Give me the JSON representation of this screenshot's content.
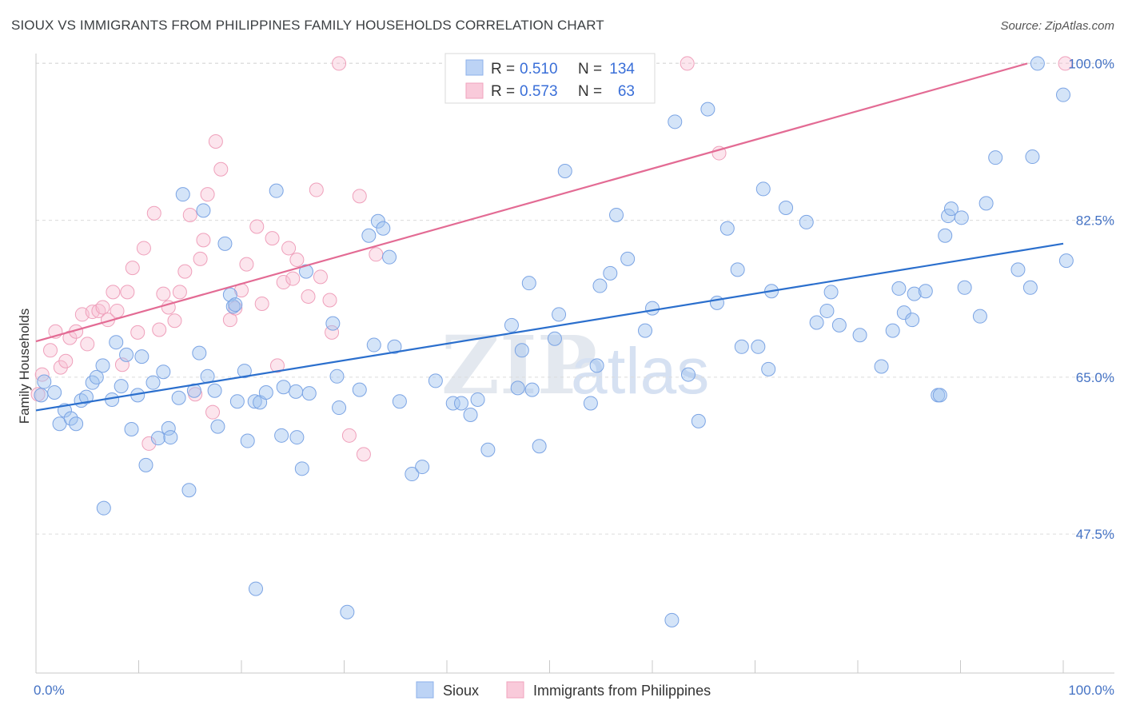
{
  "header": {
    "title": "SIOUX VS IMMIGRANTS FROM PHILIPPINES FAMILY HOUSEHOLDS CORRELATION CHART",
    "source": "Source: ZipAtlas.com"
  },
  "watermark": {
    "zip": "ZIP",
    "atlas": "atlas"
  },
  "legend_top": {
    "rows": [
      {
        "r_label": "R =",
        "r_value": "0.510",
        "n_label": "N =",
        "n_value": "134"
      },
      {
        "r_label": "R =",
        "r_value": "0.573",
        "n_label": "N =",
        "n_value": "63"
      }
    ]
  },
  "legend_bottom": {
    "items": [
      {
        "label": "Sioux"
      },
      {
        "label": "Immigrants from Philippines"
      }
    ]
  },
  "chart_data": {
    "type": "scatter",
    "title": "SIOUX VS IMMIGRANTS FROM PHILIPPINES FAMILY HOUSEHOLDS CORRELATION CHART",
    "xlabel": "",
    "ylabel": "Family Households",
    "xlim": [
      0,
      100
    ],
    "ylim": [
      32,
      102
    ],
    "x_tick_labels": [
      "0.0%",
      "100.0%"
    ],
    "y_ticks": [
      47.5,
      65.0,
      82.5,
      100.0
    ],
    "y_tick_labels": [
      "47.5%",
      "65.0%",
      "82.5%",
      "100.0%"
    ],
    "grid": "dashed horizontal",
    "colors": {
      "Sioux": "#6e9ee8",
      "Immigrants from Philippines": "#f09ab6",
      "sioux_line": "#2b6fcd",
      "phil_line": "#e36b94"
    },
    "series": [
      {
        "name": "Sioux",
        "trend": {
          "x": [
            0,
            100
          ],
          "y": [
            61.3,
            79.9
          ]
        },
        "points": [
          [
            0.5,
            63
          ],
          [
            0.8,
            64.5
          ],
          [
            1.8,
            63.3
          ],
          [
            2.3,
            59.8
          ],
          [
            2.8,
            61.3
          ],
          [
            3.4,
            60.4
          ],
          [
            3.9,
            59.8
          ],
          [
            4.4,
            62.4
          ],
          [
            4.9,
            62.8
          ],
          [
            5.5,
            64.4
          ],
          [
            5.9,
            65
          ],
          [
            6.5,
            66.3
          ],
          [
            6.6,
            50.4
          ],
          [
            7.4,
            62.5
          ],
          [
            7.8,
            68.9
          ],
          [
            8.3,
            64
          ],
          [
            8.8,
            67.5
          ],
          [
            9.3,
            59.2
          ],
          [
            9.9,
            63
          ],
          [
            10.3,
            67.3
          ],
          [
            10.7,
            55.2
          ],
          [
            11.4,
            64.4
          ],
          [
            11.9,
            58.2
          ],
          [
            12.4,
            65.6
          ],
          [
            12.9,
            59.3
          ],
          [
            13.1,
            58.3
          ],
          [
            13.9,
            62.7
          ],
          [
            14.3,
            85.4
          ],
          [
            14.9,
            52.4
          ],
          [
            15.4,
            63.5
          ],
          [
            15.9,
            67.7
          ],
          [
            16.3,
            83.6
          ],
          [
            16.7,
            65.1
          ],
          [
            17.4,
            63.5
          ],
          [
            17.7,
            59.5
          ],
          [
            18.4,
            79.9
          ],
          [
            18.9,
            74.2
          ],
          [
            19.2,
            72.9
          ],
          [
            19.4,
            73.1
          ],
          [
            19.6,
            62.3
          ],
          [
            20.3,
            65.7
          ],
          [
            20.6,
            57.9
          ],
          [
            21.3,
            62.3
          ],
          [
            21.4,
            41.4
          ],
          [
            21.8,
            62.2
          ],
          [
            22.4,
            63.3
          ],
          [
            23.4,
            85.8
          ],
          [
            23.9,
            58.5
          ],
          [
            24.1,
            63.9
          ],
          [
            25.4,
            58.3
          ],
          [
            25.3,
            63.4
          ],
          [
            25.9,
            54.8
          ],
          [
            26.3,
            76.8
          ],
          [
            26.6,
            63.2
          ],
          [
            28.9,
            71
          ],
          [
            29.3,
            65.1
          ],
          [
            29.5,
            61.6
          ],
          [
            30.3,
            38.8
          ],
          [
            31.5,
            63.6
          ],
          [
            32.4,
            80.8
          ],
          [
            32.9,
            68.6
          ],
          [
            33.3,
            82.4
          ],
          [
            33.8,
            81.6
          ],
          [
            34.4,
            78.4
          ],
          [
            34.9,
            68.4
          ],
          [
            35.4,
            62.3
          ],
          [
            36.6,
            54.2
          ],
          [
            37.6,
            55
          ],
          [
            38.9,
            64.6
          ],
          [
            40.6,
            62.1
          ],
          [
            41.4,
            62.1
          ],
          [
            42.3,
            60.8
          ],
          [
            43,
            62.5
          ],
          [
            44,
            56.9
          ],
          [
            46.3,
            70.8
          ],
          [
            46.9,
            63.8
          ],
          [
            47.3,
            68
          ],
          [
            48,
            75.5
          ],
          [
            48.3,
            63.6
          ],
          [
            49,
            57.3
          ],
          [
            50.5,
            69.3
          ],
          [
            50.9,
            72
          ],
          [
            51.5,
            88
          ],
          [
            54,
            62.1
          ],
          [
            54.6,
            66.3
          ],
          [
            54.9,
            75.2
          ],
          [
            55.9,
            76.6
          ],
          [
            56.5,
            83.1
          ],
          [
            57.6,
            78.2
          ],
          [
            59.3,
            70.2
          ],
          [
            60,
            72.7
          ],
          [
            61.9,
            37.9
          ],
          [
            62.2,
            93.5
          ],
          [
            63.5,
            65.3
          ],
          [
            64.5,
            60.1
          ],
          [
            65.4,
            94.9
          ],
          [
            66.3,
            73.3
          ],
          [
            67.3,
            81.6
          ],
          [
            68.3,
            77
          ],
          [
            68.7,
            68.4
          ],
          [
            70.3,
            68.4
          ],
          [
            70.8,
            86
          ],
          [
            71.3,
            65.9
          ],
          [
            71.6,
            74.6
          ],
          [
            73,
            83.9
          ],
          [
            75,
            82.3
          ],
          [
            76,
            71.1
          ],
          [
            77,
            72.4
          ],
          [
            77.4,
            74.5
          ],
          [
            78.2,
            70.8
          ],
          [
            80.2,
            69.7
          ],
          [
            82.3,
            66.2
          ],
          [
            83.4,
            70.2
          ],
          [
            84,
            74.9
          ],
          [
            84.5,
            72.2
          ],
          [
            85.3,
            71.4
          ],
          [
            85.5,
            74.3
          ],
          [
            86.6,
            74.6
          ],
          [
            87.8,
            63
          ],
          [
            88,
            63
          ],
          [
            88.5,
            80.8
          ],
          [
            88.8,
            83
          ],
          [
            89.1,
            83.8
          ],
          [
            90.1,
            82.8
          ],
          [
            90.4,
            75
          ],
          [
            91.9,
            71.8
          ],
          [
            92.5,
            84.4
          ],
          [
            93.4,
            89.5
          ],
          [
            95.6,
            77
          ],
          [
            96.8,
            75
          ],
          [
            97,
            89.6
          ],
          [
            97.5,
            100
          ],
          [
            100,
            96.5
          ],
          [
            100.3,
            78
          ]
        ]
      },
      {
        "name": "Immigrants from Philippines",
        "trend": {
          "x": [
            0,
            96.5
          ],
          "y": [
            69,
            100
          ]
        },
        "points": [
          [
            0.2,
            63.1
          ],
          [
            0.6,
            65.3
          ],
          [
            1.4,
            68
          ],
          [
            1.9,
            70.1
          ],
          [
            2.4,
            66.1
          ],
          [
            2.9,
            66.8
          ],
          [
            3.3,
            69.4
          ],
          [
            3.9,
            70.1
          ],
          [
            4.5,
            72
          ],
          [
            5,
            68.7
          ],
          [
            5.5,
            72.3
          ],
          [
            6.1,
            72.4
          ],
          [
            6.5,
            72.8
          ],
          [
            7,
            71.4
          ],
          [
            7.5,
            74.5
          ],
          [
            7.9,
            72.4
          ],
          [
            8.4,
            66.4
          ],
          [
            8.9,
            74.5
          ],
          [
            9.4,
            77.2
          ],
          [
            9.9,
            70
          ],
          [
            10.5,
            79.4
          ],
          [
            11,
            57.6
          ],
          [
            11.5,
            83.3
          ],
          [
            12,
            70.3
          ],
          [
            12.4,
            74.3
          ],
          [
            12.9,
            72.8
          ],
          [
            13.5,
            71.3
          ],
          [
            14,
            74.5
          ],
          [
            14.5,
            76.8
          ],
          [
            15,
            83.1
          ],
          [
            15.5,
            63.1
          ],
          [
            16,
            78.2
          ],
          [
            16.3,
            80.3
          ],
          [
            16.7,
            85.4
          ],
          [
            17.2,
            61.1
          ],
          [
            17.5,
            91.3
          ],
          [
            18,
            88.2
          ],
          [
            18.9,
            71.4
          ],
          [
            19.4,
            72.7
          ],
          [
            20,
            74.7
          ],
          [
            20.5,
            77.6
          ],
          [
            21.5,
            81.8
          ],
          [
            22,
            73.2
          ],
          [
            23,
            80.5
          ],
          [
            23.5,
            66.3
          ],
          [
            24.1,
            75.6
          ],
          [
            24.6,
            79.4
          ],
          [
            25,
            76
          ],
          [
            25.4,
            78.1
          ],
          [
            26.5,
            74
          ],
          [
            27.3,
            85.9
          ],
          [
            27.7,
            76.2
          ],
          [
            28.6,
            73.6
          ],
          [
            28.8,
            70
          ],
          [
            29.5,
            100
          ],
          [
            30.5,
            58.5
          ],
          [
            31.5,
            85.2
          ],
          [
            31.9,
            56.4
          ],
          [
            33.1,
            78.7
          ],
          [
            63.4,
            100
          ],
          [
            66.5,
            90
          ],
          [
            100.2,
            100
          ]
        ]
      }
    ]
  }
}
